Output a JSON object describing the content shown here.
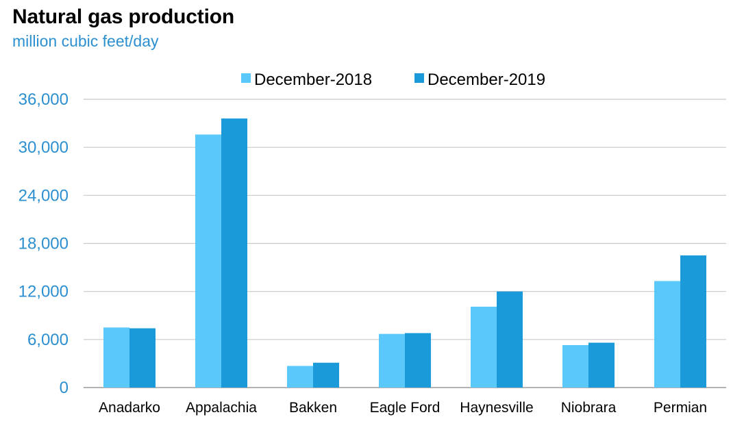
{
  "title": "Natural gas production",
  "subtitle": "million cubic feet/day",
  "colors": {
    "series1": "#5ac8fa",
    "series2": "#1a9ad9",
    "axis_text": "#2b8fd0",
    "grid": "#c8c8c8"
  },
  "chart_data": {
    "type": "bar",
    "title": "Natural gas production",
    "subtitle": "million cubic feet/day",
    "xlabel": "",
    "ylabel": "",
    "categories": [
      "Anadarko",
      "Appalachia",
      "Bakken",
      "Eagle Ford",
      "Haynesville",
      "Niobrara",
      "Permian"
    ],
    "series": [
      {
        "name": "December-2018",
        "values": [
          7500,
          31600,
          2700,
          6700,
          10100,
          5300,
          13300
        ]
      },
      {
        "name": "December-2019",
        "values": [
          7400,
          33600,
          3100,
          6800,
          12000,
          5600,
          16500
        ]
      }
    ],
    "ylim": [
      0,
      36000
    ],
    "yticks": [
      0,
      6000,
      12000,
      18000,
      24000,
      30000,
      36000
    ],
    "ytick_labels": [
      "0",
      "6,000",
      "12,000",
      "18,000",
      "24,000",
      "30,000",
      "36,000"
    ],
    "grid": true,
    "legend_position": "top-center"
  }
}
